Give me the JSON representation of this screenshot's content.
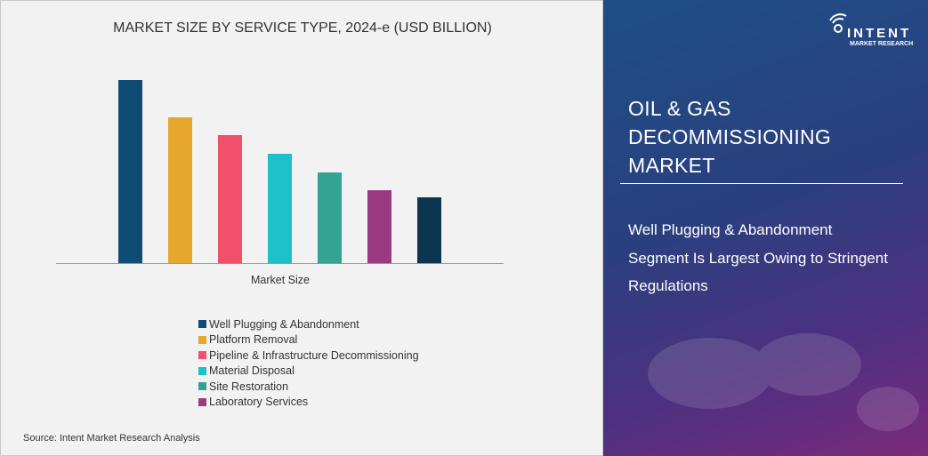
{
  "chart_data": {
    "type": "bar",
    "title": "MARKET SIZE BY SERVICE TYPE, 2024-e (USD BILLION)",
    "xlabel": "Market Size",
    "categories": [
      "Market Size"
    ],
    "series": [
      {
        "name": "Well Plugging & Abandonment",
        "values": [
          206
        ],
        "color": "#0f4c75"
      },
      {
        "name": "Platform Removal",
        "values": [
          164
        ],
        "color": "#e6a72c"
      },
      {
        "name": "Pipeline & Infrastructure Decommissioning",
        "values": [
          144
        ],
        "color": "#f0506a"
      },
      {
        "name": "Material Disposal",
        "values": [
          123
        ],
        "color": "#1fc1c8"
      },
      {
        "name": "Site Restoration",
        "values": [
          102
        ],
        "color": "#35a394"
      },
      {
        "name": "Laboratory Services",
        "values": [
          82
        ],
        "color": "#9b3a82"
      },
      {
        "values": [
          74
        ],
        "color": "#0b3550"
      }
    ],
    "ylim": [
      0,
      206
    ],
    "legend": "bottom",
    "grid": false
  },
  "source": "Source: Intent Market Research Analysis",
  "panel": {
    "title_lines": [
      "OIL & GAS",
      "DECOMMISSIONING",
      "MARKET"
    ],
    "subtitle": "Well Plugging & Abandonment Segment Is Largest Owing to Stringent Regulations"
  },
  "logo": {
    "name": "INTENT",
    "tagline": "MARKET RESEARCH",
    "tm": "TM"
  }
}
